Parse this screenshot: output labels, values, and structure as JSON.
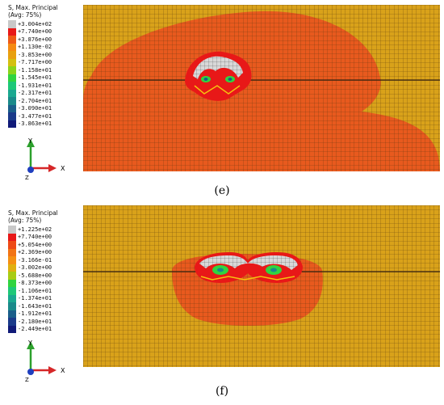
{
  "panels": [
    {
      "id": "e",
      "caption": "(e)",
      "legend": {
        "title_line1": "S, Max. Principal",
        "title_line2": "(Avg: 75%)",
        "entries": [
          {
            "label": "+3.004e+02",
            "color": "#c8c8c8"
          },
          {
            "label": "+7.740e+00",
            "color": "#e81818"
          },
          {
            "label": "+3.876e+00",
            "color": "#ee5a16"
          },
          {
            "label": "+1.130e-02",
            "color": "#f58a12"
          },
          {
            "label": "-3.853e+00",
            "color": "#e8a010"
          },
          {
            "label": "-7.717e+00",
            "color": "#d4c010"
          },
          {
            "label": "-1.158e+01",
            "color": "#8ad41a"
          },
          {
            "label": "-1.545e+01",
            "color": "#30d440"
          },
          {
            "label": "-1.931e+01",
            "color": "#1ec878"
          },
          {
            "label": "-2.317e+01",
            "color": "#1aa890"
          },
          {
            "label": "-2.704e+01",
            "color": "#1a8a8a"
          },
          {
            "label": "-3.090e+01",
            "color": "#1a5e8a"
          },
          {
            "label": "-3.477e+01",
            "color": "#1a3a8a"
          },
          {
            "label": "-3.863e+01",
            "color": "#101a78"
          }
        ]
      }
    },
    {
      "id": "f",
      "caption": "(f)",
      "legend": {
        "title_line1": "S, Max. Principal",
        "title_line2": "(Avg: 75%)",
        "entries": [
          {
            "label": "+1.225e+02",
            "color": "#c8c8c8"
          },
          {
            "label": "+7.740e+00",
            "color": "#e81818"
          },
          {
            "label": "+5.054e+00",
            "color": "#ee4a16"
          },
          {
            "label": "+2.369e+00",
            "color": "#f27414"
          },
          {
            "label": "-3.166e-01",
            "color": "#f59012"
          },
          {
            "label": "-3.002e+00",
            "color": "#e0b010"
          },
          {
            "label": "-5.688e+00",
            "color": "#a8cc14"
          },
          {
            "label": "-8.373e+00",
            "color": "#30d440"
          },
          {
            "label": "-1.106e+01",
            "color": "#1ec878"
          },
          {
            "label": "-1.374e+01",
            "color": "#1aa890"
          },
          {
            "label": "-1.643e+01",
            "color": "#1a8a8a"
          },
          {
            "label": "-1.912e+01",
            "color": "#1a5e8a"
          },
          {
            "label": "-2.180e+01",
            "color": "#1a3a8a"
          },
          {
            "label": "-2.449e+01",
            "color": "#101a78"
          }
        ]
      }
    }
  ],
  "axes": {
    "y": "Y",
    "x": "X",
    "z": "Z"
  },
  "colors": {
    "mesh_base": "#d9a21a",
    "stress_zone": "#e85a1e",
    "high_stress": "#e81818",
    "grid_line": "#5a3a10"
  }
}
